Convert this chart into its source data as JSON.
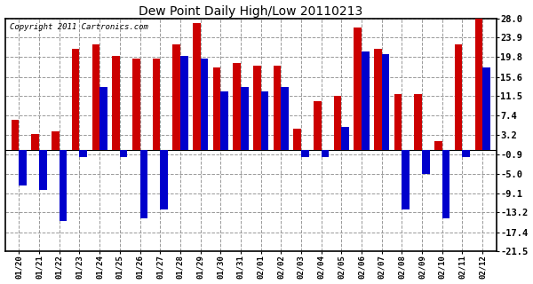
{
  "title": "Dew Point Daily High/Low 20110213",
  "copyright": "Copyright 2011 Cartronics.com",
  "dates": [
    "01/20",
    "01/21",
    "01/22",
    "01/23",
    "01/24",
    "01/25",
    "01/26",
    "01/27",
    "01/28",
    "01/29",
    "01/30",
    "01/31",
    "02/01",
    "02/02",
    "02/03",
    "02/04",
    "02/05",
    "02/06",
    "02/07",
    "02/08",
    "02/09",
    "02/10",
    "02/11",
    "02/12"
  ],
  "high_vals": [
    6.5,
    3.5,
    4.0,
    21.5,
    22.5,
    20.0,
    19.5,
    19.5,
    22.5,
    27.0,
    17.5,
    18.5,
    18.0,
    18.0,
    4.5,
    10.5,
    11.5,
    26.0,
    21.5,
    12.0,
    12.0,
    2.0,
    22.5,
    28.0
  ],
  "low_vals": [
    -7.5,
    -8.5,
    -15.0,
    -1.5,
    13.5,
    -1.5,
    -14.5,
    -12.5,
    20.0,
    19.5,
    12.5,
    13.5,
    12.5,
    13.5,
    -1.5,
    -1.5,
    5.0,
    21.0,
    20.5,
    -12.5,
    -5.0,
    -14.5,
    -1.5,
    17.5
  ],
  "high_color": "#cc0000",
  "low_color": "#0000cc",
  "yticks": [
    28.0,
    23.9,
    19.8,
    15.6,
    11.5,
    7.4,
    3.2,
    -0.9,
    -5.0,
    -9.1,
    -13.2,
    -17.4,
    -21.5
  ],
  "ylim": [
    -21.5,
    28.0
  ],
  "bg_color": "#ffffff",
  "grid_color": "#999999",
  "bar_width": 0.38
}
